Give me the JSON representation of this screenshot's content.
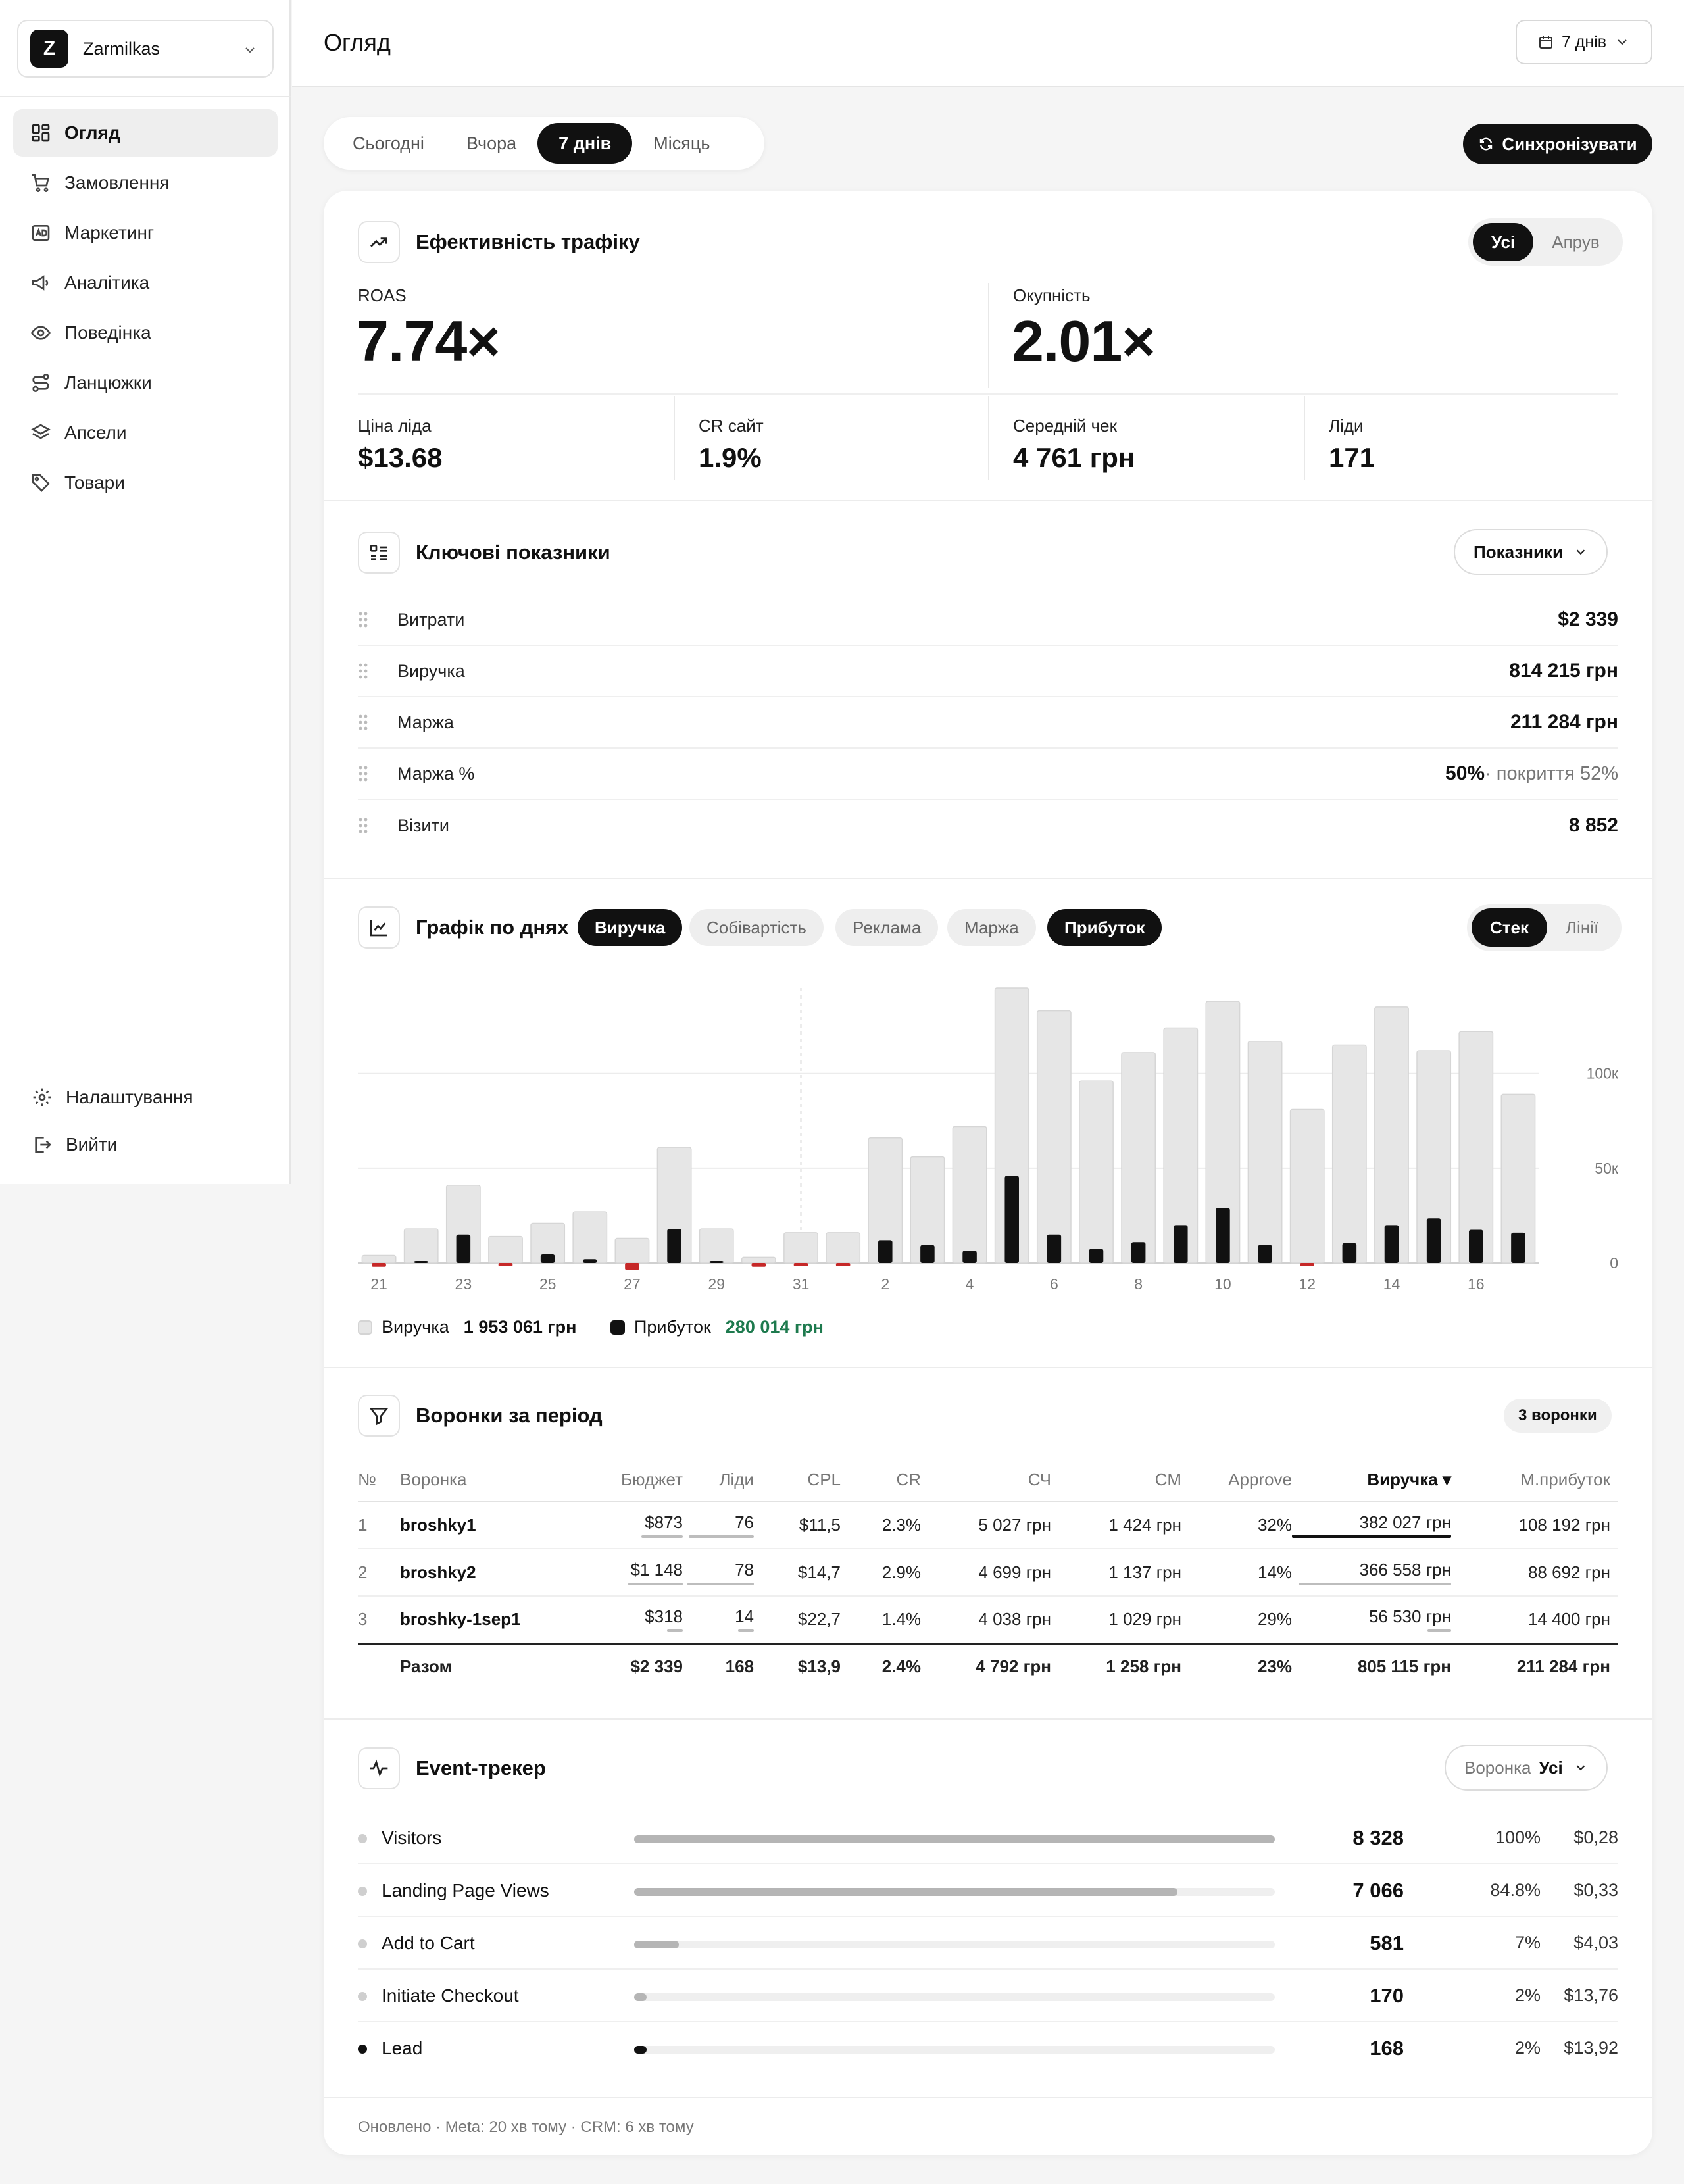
{
  "workspace": {
    "initial": "Z",
    "name": "Zarmilkas"
  },
  "nav": {
    "items": [
      {
        "label": "Огляд",
        "icon": "dashboard-icon"
      },
      {
        "label": "Замовлення",
        "icon": "cart-icon"
      },
      {
        "label": "Маркетинг",
        "icon": "ad-icon"
      },
      {
        "label": "Аналітика",
        "icon": "megaphone-icon"
      },
      {
        "label": "Поведінка",
        "icon": "eye-icon"
      },
      {
        "label": "Ланцюжки",
        "icon": "route-icon"
      },
      {
        "label": "Апсели",
        "icon": "layers-icon"
      },
      {
        "label": "Товари",
        "icon": "tag-icon"
      }
    ],
    "settings": "Налаштування",
    "logout": "Вийти"
  },
  "header": {
    "title": "Огляд",
    "period": "7 днів"
  },
  "period_tabs": [
    "Сьогодні",
    "Вчора",
    "7 днів",
    "Місяць"
  ],
  "sync_label": "Синхронізувати",
  "traffic": {
    "title": "Ефективність трафіку",
    "toggle": [
      "Усі",
      "Апрув"
    ],
    "roas_label": "ROAS",
    "roas": "7.74×",
    "payback_label": "Окупність",
    "payback": "2.01×",
    "lead_price_label": "Ціна ліда",
    "lead_price": "$13.68",
    "cr_label": "CR сайт",
    "cr": "1.9%",
    "avg_check_label": "Середній чек",
    "avg_check": "4 761 грн",
    "leads_label": "Ліди",
    "leads": "171"
  },
  "key_metrics": {
    "title": "Ключові показники",
    "button": "Показники",
    "rows": [
      {
        "label": "Витрати",
        "value": "$2 339",
        "extra": ""
      },
      {
        "label": "Виручка",
        "value": "814 215 грн",
        "extra": ""
      },
      {
        "label": "Маржа",
        "value": "211 284 грн",
        "extra": ""
      },
      {
        "label": "Маржа %",
        "value": "50%",
        "extra": " · покриття 52%"
      },
      {
        "label": "Візити",
        "value": "8 852",
        "extra": ""
      }
    ]
  },
  "daily": {
    "title": "Графік по днях",
    "chips": [
      "Виручка",
      "Собівартість",
      "Реклама",
      "Маржа",
      "Прибуток"
    ],
    "mode": [
      "Стек",
      "Лінії"
    ],
    "legend_revenue_label": "Виручка",
    "legend_revenue_value": "1 953 061 грн",
    "legend_profit_label": "Прибуток",
    "legend_profit_value": "280 014 грн"
  },
  "chart_data": {
    "type": "bar",
    "categories": [
      "21",
      "22",
      "23",
      "24",
      "25",
      "26",
      "27",
      "28",
      "29",
      "30",
      "31",
      "1",
      "2",
      "3",
      "4",
      "5",
      "6",
      "7",
      "8",
      "9",
      "10",
      "11",
      "12",
      "13",
      "14",
      "15",
      "16",
      "17"
    ],
    "x_tick_labels": [
      "21",
      "23",
      "25",
      "27",
      "29",
      "31",
      "2",
      "4",
      "6",
      "8",
      "10",
      "12",
      "14",
      "16"
    ],
    "y_tick_labels": [
      "0",
      "50к",
      "100к"
    ],
    "ylim": [
      0,
      145000
    ],
    "series": [
      {
        "name": "Виручка",
        "values": [
          4000,
          18000,
          41000,
          14000,
          21000,
          27000,
          13000,
          61000,
          18000,
          3000,
          16000,
          16000,
          66000,
          56000,
          72000,
          145000,
          133000,
          96000,
          111000,
          124000,
          138000,
          117000,
          81000,
          115000,
          135000,
          112000,
          122000,
          89000
        ]
      },
      {
        "name": "Прибуток",
        "values": [
          -2000,
          500,
          15000,
          -500,
          4500,
          2000,
          -3500,
          18000,
          500,
          -2000,
          -500,
          -500,
          12000,
          9500,
          6500,
          46000,
          15000,
          7500,
          11000,
          20000,
          29000,
          9500,
          -500,
          10500,
          20000,
          23500,
          17500,
          16000
        ]
      }
    ],
    "grid": true
  },
  "funnels": {
    "title": "Воронки за період",
    "badge": "3 воронки",
    "headers": [
      "№",
      "Воронка",
      "Бюджет",
      "Ліди",
      "CPL",
      "CR",
      "СЧ",
      "CM",
      "Approve",
      "Виручка ▾",
      "М.прибуток"
    ],
    "rows": [
      {
        "n": "1",
        "name": "broshky1",
        "budget": "$873",
        "leads": "76",
        "cpl": "$11,5",
        "cr": "2.3%",
        "sch": "5 027 грн",
        "cm": "1 424 грн",
        "approve": "32%",
        "revenue": "382 027 грн",
        "profit": "108 192 грн",
        "budget_share": 0.37,
        "leads_share": 0.45,
        "revenue_share": 1.0
      },
      {
        "n": "2",
        "name": "broshky2",
        "budget": "$1 148",
        "leads": "78",
        "cpl": "$14,7",
        "cr": "2.9%",
        "sch": "4 699 грн",
        "cm": "1 137 грн",
        "approve": "14%",
        "revenue": "366 558 грн",
        "profit": "88 692 грн",
        "budget_share": 0.49,
        "leads_share": 0.46,
        "revenue_share": 0.96
      },
      {
        "n": "3",
        "name": "broshky-1sep1",
        "budget": "$318",
        "leads": "14",
        "cpl": "$22,7",
        "cr": "1.4%",
        "sch": "4 038 грн",
        "cm": "1 029 грн",
        "approve": "29%",
        "revenue": "56 530 грн",
        "profit": "14 400 грн",
        "budget_share": 0.14,
        "leads_share": 0.08,
        "revenue_share": 0.15
      }
    ],
    "total": {
      "label": "Разом",
      "budget": "$2 339",
      "leads": "168",
      "cpl": "$13,9",
      "cr": "2.4%",
      "sch": "4 792 грн",
      "cm": "1 258 грн",
      "approve": "23%",
      "revenue": "805 115 грн",
      "profit": "211 284 грн"
    }
  },
  "events": {
    "title": "Event-трекер",
    "filter_label": "Воронка",
    "filter_value": "Усі",
    "rows": [
      {
        "name": "Visitors",
        "count": "8 328",
        "pct": "100%",
        "cost": "$0,28",
        "fill": 1.0
      },
      {
        "name": "Landing Page Views",
        "count": "7 066",
        "pct": "84.8%",
        "cost": "$0,33",
        "fill": 0.848
      },
      {
        "name": "Add to Cart",
        "count": "581",
        "pct": "7%",
        "cost": "$4,03",
        "fill": 0.07
      },
      {
        "name": "Initiate Checkout",
        "count": "170",
        "pct": "2%",
        "cost": "$13,76",
        "fill": 0.02
      },
      {
        "name": "Lead",
        "count": "168",
        "pct": "2%",
        "cost": "$13,92",
        "fill": 0.02
      }
    ]
  },
  "footer": "Оновлено · Meta: 20 хв тому · CRM: 6 хв тому",
  "colors": {
    "accent": "#111111",
    "revenue_bar": "#e4e4e4",
    "profit_bar": "#111111",
    "loss_bar": "#c62828",
    "profit_text": "#1e7a4e"
  }
}
